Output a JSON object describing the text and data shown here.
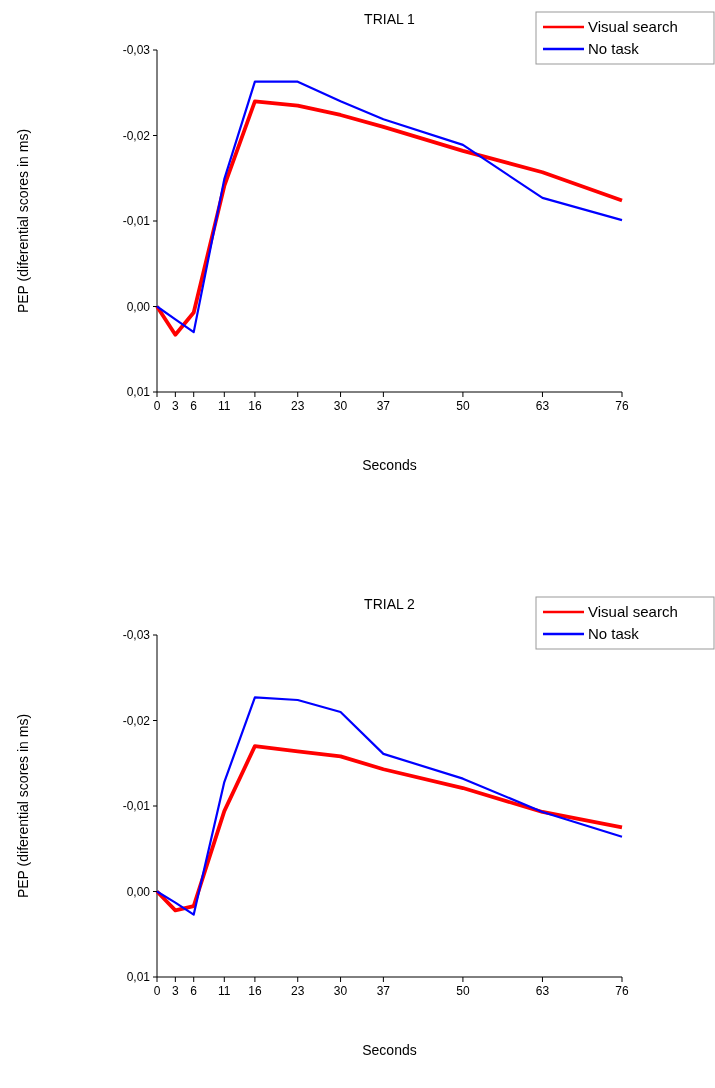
{
  "chart_data": [
    {
      "type": "line",
      "title": "TRIAL 1",
      "xlabel": "Seconds",
      "ylabel": "PEP (diferential scores in ms)",
      "legend": "top right",
      "grid": false,
      "x": [
        0,
        3,
        6,
        11,
        16,
        23,
        30,
        37,
        50,
        63,
        76
      ],
      "xlim": [
        0,
        76
      ],
      "xticks": [
        0,
        3,
        6,
        11,
        16,
        23,
        30,
        37,
        50,
        63,
        76
      ],
      "ylim": [
        0.01,
        -0.03
      ],
      "yticks": [
        {
          "value": 0.01,
          "label": "0,01"
        },
        {
          "value": 0,
          "label": "0,00"
        },
        {
          "value": -0.01,
          "label": "-0,01"
        },
        {
          "value": -0.02,
          "label": "-0,02"
        },
        {
          "value": -0.03,
          "label": "-0,03"
        }
      ],
      "series": [
        {
          "name": "Visual search",
          "color": "#ff0000",
          "values": [
            0,
            0.0033,
            0.0007,
            -0.0141,
            -0.024,
            -0.0235,
            -0.0224,
            -0.021,
            -0.0182,
            -0.0157,
            -0.0124
          ]
        },
        {
          "name": "No task",
          "color": "#0000ff",
          "values": [
            0,
            0.0015,
            0.003,
            -0.0149,
            -0.0263,
            -0.0263,
            -0.024,
            -0.0219,
            -0.0189,
            -0.0127,
            -0.0101
          ]
        }
      ]
    },
    {
      "type": "line",
      "title": "TRIAL 2",
      "xlabel": "Seconds",
      "ylabel": "PEP (diferential scores in ms)",
      "legend": "top right",
      "grid": false,
      "x": [
        0,
        3,
        6,
        11,
        16,
        23,
        30,
        37,
        50,
        63,
        76
      ],
      "xlim": [
        0,
        76
      ],
      "xticks": [
        0,
        3,
        6,
        11,
        16,
        23,
        30,
        37,
        50,
        63,
        76
      ],
      "ylim": [
        0.01,
        -0.03
      ],
      "yticks": [
        {
          "value": 0.01,
          "label": "0,01"
        },
        {
          "value": 0,
          "label": "0,00"
        },
        {
          "value": -0.01,
          "label": "-0,01"
        },
        {
          "value": -0.02,
          "label": "-0,02"
        },
        {
          "value": -0.03,
          "label": "-0,03"
        }
      ],
      "series": [
        {
          "name": "Visual search",
          "color": "#ff0000",
          "values": [
            0,
            0.0022,
            0.0017,
            -0.0094,
            -0.017,
            -0.0164,
            -0.0158,
            -0.0143,
            -0.0121,
            -0.0093,
            -0.0075
          ]
        },
        {
          "name": "No task",
          "color": "#0000ff",
          "values": [
            0,
            0.0013,
            0.0027,
            -0.0128,
            -0.0227,
            -0.0224,
            -0.021,
            -0.0161,
            -0.0132,
            -0.0093,
            -0.0064
          ]
        }
      ]
    }
  ]
}
